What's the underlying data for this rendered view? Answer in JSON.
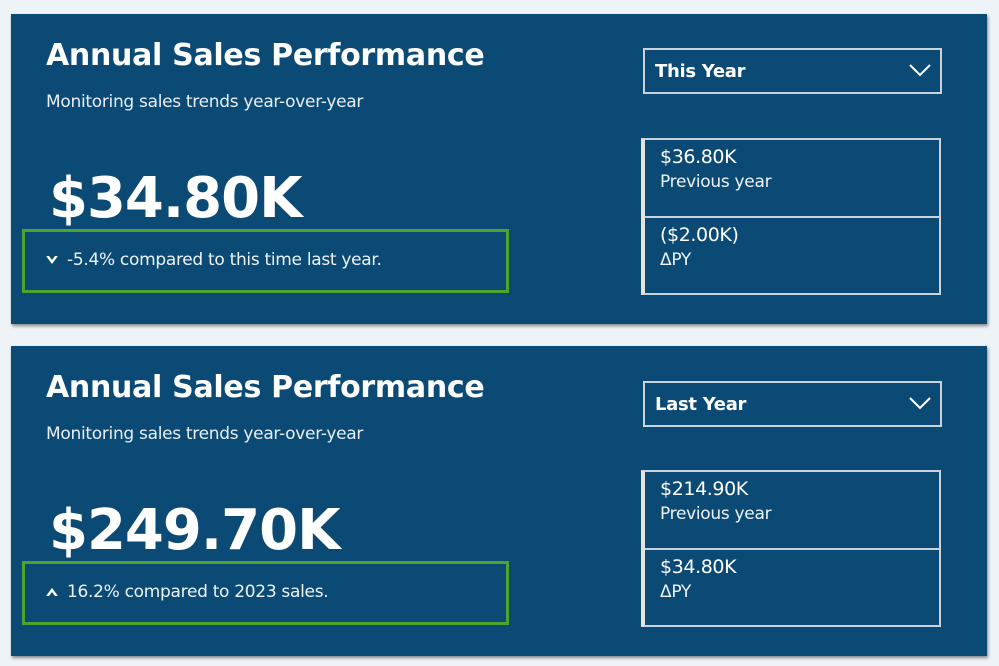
{
  "cards": [
    {
      "title": "Annual Sales Performance",
      "subtitle": "Monitoring sales trends year-over-year",
      "value": "$34.80K",
      "trend_icon": "chevron-down-icon",
      "trend_text": "-5.4% compared to this time last year.",
      "dropdown": "This Year",
      "stats": [
        {
          "value": "$36.80K",
          "label": "Previous year"
        },
        {
          "value": "($2.00K)",
          "label": "ΔPY"
        }
      ]
    },
    {
      "title": "Annual Sales Performance",
      "subtitle": "Monitoring sales trends year-over-year",
      "value": "$249.70K",
      "trend_icon": "chevron-up-icon",
      "trend_text": "16.2% compared to 2023 sales.",
      "dropdown": "Last Year",
      "stats": [
        {
          "value": "$214.90K",
          "label": "Previous year"
        },
        {
          "value": "$34.80K",
          "label": "ΔPY"
        }
      ]
    }
  ],
  "colors": {
    "card_bg": "#0b4a75",
    "highlight": "#4aa62d",
    "border": "#c9d3dc"
  }
}
